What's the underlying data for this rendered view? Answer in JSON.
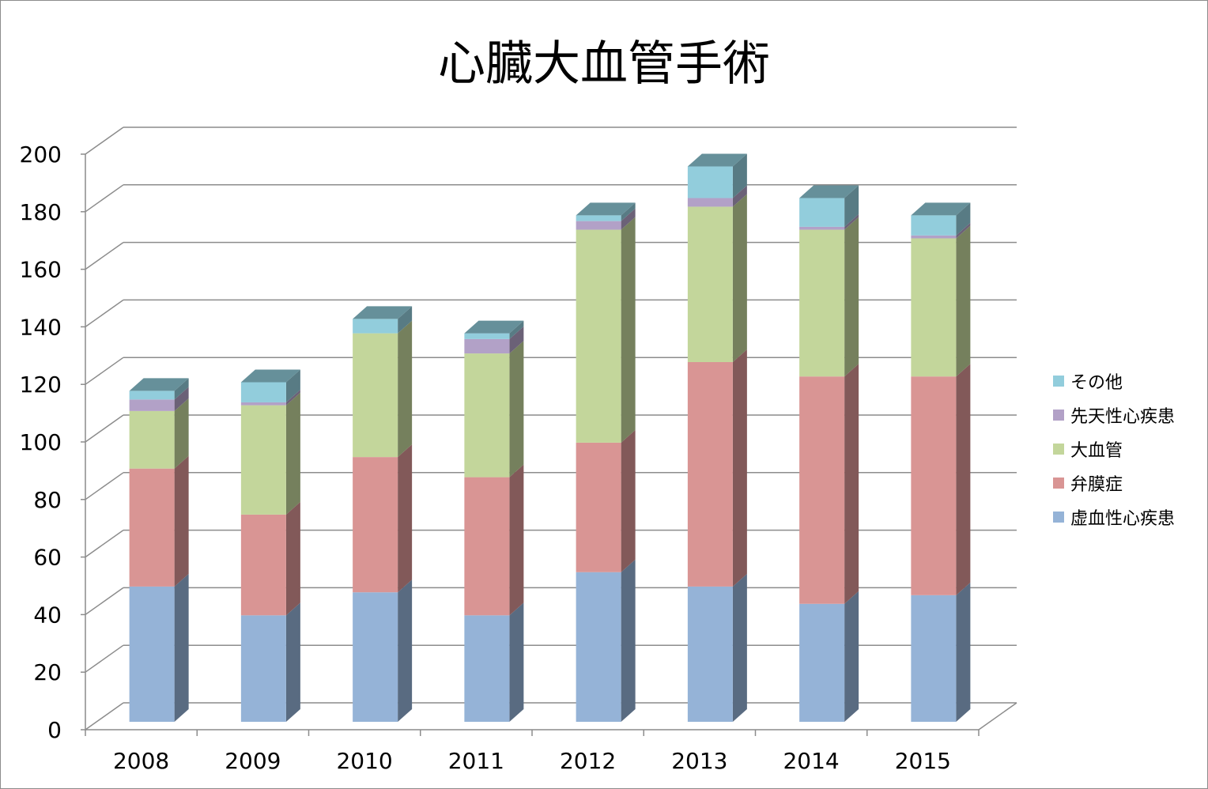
{
  "chart_data": {
    "type": "bar",
    "stacked": true,
    "title": "心臓大血管手術",
    "xlabel": "",
    "ylabel": "",
    "categories": [
      "2008",
      "2009",
      "2010",
      "2011",
      "2012",
      "2013",
      "2014",
      "2015"
    ],
    "ylim": [
      0,
      200
    ],
    "yticks": [
      "0",
      "20",
      "40",
      "60",
      "80",
      "100",
      "120",
      "140",
      "160",
      "180",
      "200"
    ],
    "grid": true,
    "legend_position": "right",
    "series": [
      {
        "name": "虚血性心疾患",
        "color": "#95b3d7",
        "values": [
          47,
          37,
          45,
          37,
          52,
          47,
          41,
          44
        ]
      },
      {
        "name": "弁膜症",
        "color": "#d99594",
        "values": [
          41,
          35,
          47,
          48,
          45,
          78,
          79,
          76
        ]
      },
      {
        "name": "大血管",
        "color": "#c3d69b",
        "values": [
          20,
          38,
          43,
          43,
          74,
          54,
          51,
          48
        ]
      },
      {
        "name": "先天性心疾患",
        "color": "#b2a1c7",
        "values": [
          4,
          1,
          0,
          5,
          3,
          3,
          1,
          1
        ]
      },
      {
        "name": "その他",
        "color": "#92cddc",
        "values": [
          3,
          7,
          5,
          2,
          2,
          11,
          10,
          7
        ]
      }
    ]
  }
}
